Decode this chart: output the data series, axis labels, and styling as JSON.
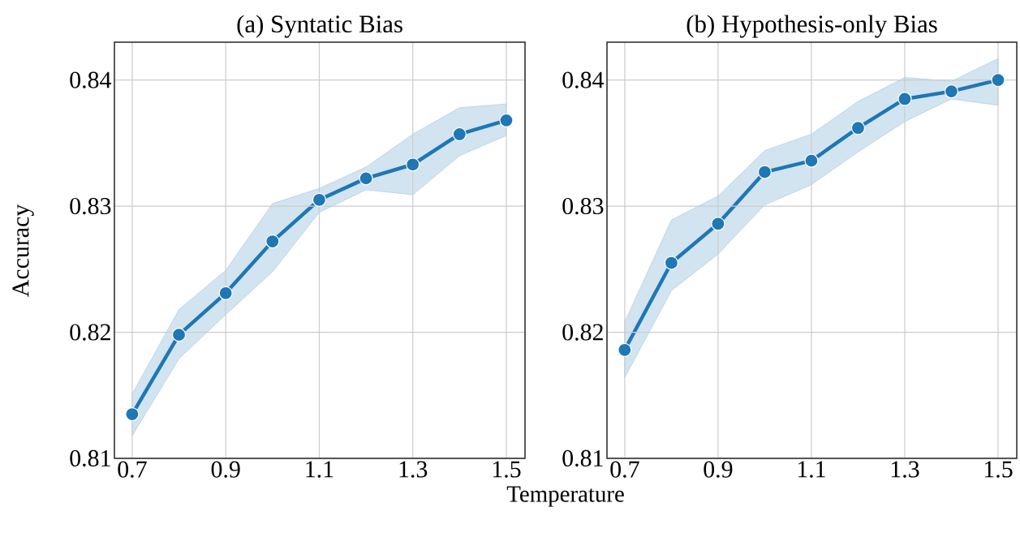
{
  "chart_data": [
    {
      "type": "line",
      "title": "(a) Syntatic Bias",
      "xlabel": "Temperature",
      "ylabel": "Accuracy",
      "x": [
        0.7,
        0.8,
        0.9,
        1.0,
        1.1,
        1.2,
        1.3,
        1.4,
        1.5
      ],
      "series": [
        {
          "color": "#1f77b4",
          "values": [
            0.8135,
            0.8198,
            0.8231,
            0.8272,
            0.8305,
            0.8322,
            0.8333,
            0.8357,
            0.8368
          ],
          "lower": [
            0.8118,
            0.8179,
            0.8214,
            0.8248,
            0.8295,
            0.8313,
            0.8309,
            0.834,
            0.8356
          ],
          "upper": [
            0.8151,
            0.8218,
            0.8249,
            0.8302,
            0.8314,
            0.8331,
            0.8357,
            0.8378,
            0.8381
          ]
        }
      ],
      "xlim": [
        0.662,
        1.54
      ],
      "ylim": [
        0.81,
        0.843
      ],
      "xticks": [
        0.7,
        0.9,
        1.1,
        1.3,
        1.5
      ],
      "yticks": [
        0.81,
        0.82,
        0.83,
        0.84
      ],
      "grid": true,
      "marker": "circle",
      "line_style": "solid"
    },
    {
      "type": "line",
      "title": "(b) Hypothesis-only Bias",
      "x": [
        0.7,
        0.8,
        0.9,
        1.0,
        1.1,
        1.2,
        1.3,
        1.4,
        1.5
      ],
      "series": [
        {
          "color": "#1f77b4",
          "values": [
            0.8186,
            0.8255,
            0.8286,
            0.8327,
            0.8336,
            0.8362,
            0.8385,
            0.8391,
            0.84
          ],
          "lower": [
            0.8164,
            0.8233,
            0.8262,
            0.8301,
            0.8317,
            0.8343,
            0.8367,
            0.8385,
            0.838
          ],
          "upper": [
            0.8208,
            0.8289,
            0.8308,
            0.8344,
            0.8357,
            0.8383,
            0.8402,
            0.8399,
            0.8417
          ]
        }
      ],
      "xlim": [
        0.662,
        1.54
      ],
      "ylim": [
        0.81,
        0.843
      ],
      "xticks": [
        0.7,
        0.9,
        1.1,
        1.3,
        1.5
      ],
      "yticks": [
        0.81,
        0.82,
        0.83,
        0.84
      ],
      "grid": true,
      "marker": "circle",
      "line_style": "solid"
    }
  ]
}
